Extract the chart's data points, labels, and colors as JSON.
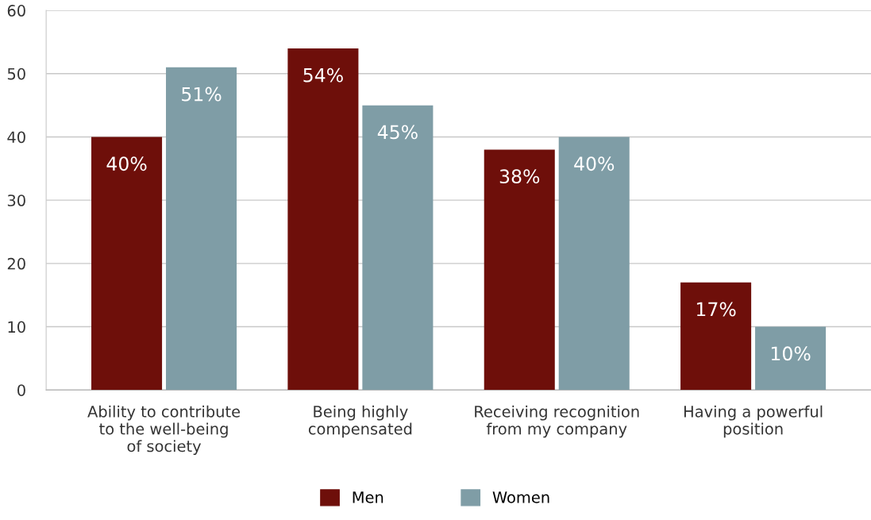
{
  "chart_data": {
    "type": "bar",
    "categories": [
      "Ability to contribute\nto the well-being\nof society",
      "Being highly\ncompensated",
      "Receiving recognition\nfrom my company",
      "Having a powerful\nposition"
    ],
    "series": [
      {
        "name": "Men",
        "color": "#6e0f0a",
        "values": [
          40,
          54,
          38,
          17
        ],
        "value_labels": [
          "40%",
          "54%",
          "38%",
          "17%"
        ]
      },
      {
        "name": "Women",
        "color": "#7f9da6",
        "values": [
          51,
          45,
          40,
          10
        ],
        "value_labels": [
          "51%",
          "45%",
          "40%",
          "10%"
        ]
      }
    ],
    "ylim": [
      0,
      60
    ],
    "yticks": [
      0,
      10,
      20,
      30,
      40,
      50,
      60
    ],
    "grid": "y",
    "legend": "bottom"
  }
}
